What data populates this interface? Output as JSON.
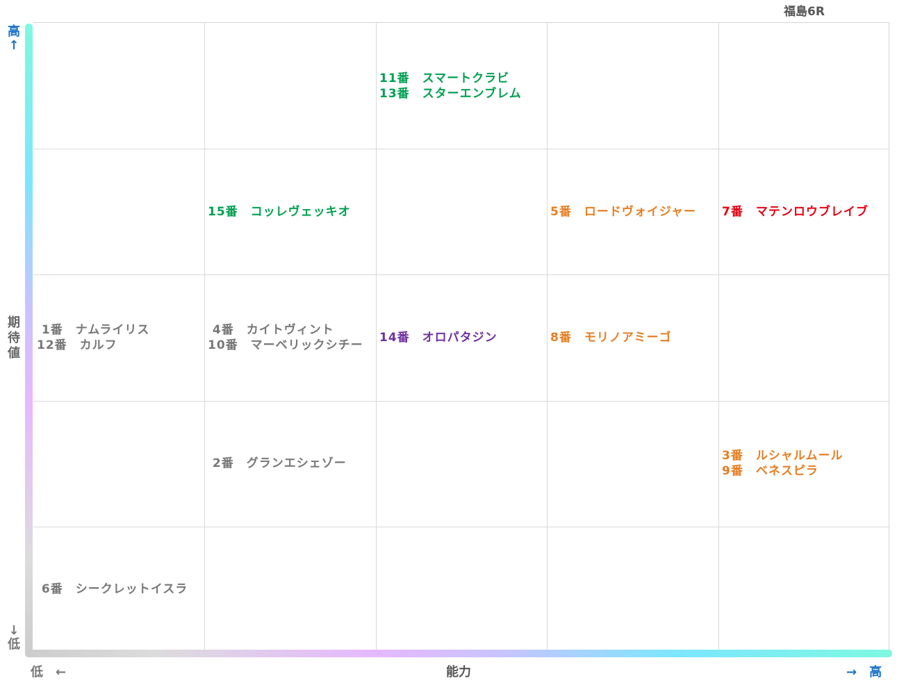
{
  "chart_data": {
    "type": "table",
    "title": "福島6R",
    "xlabel": "能力",
    "ylabel": "期待値",
    "x_low_label": "低　←",
    "x_high_label": "→　高",
    "y_high_label": "高",
    "y_high_arrow": "↑",
    "y_low_label": "低",
    "y_low_arrow": "↓",
    "ylabel_chars": [
      "期",
      "待",
      "値"
    ],
    "grid": {
      "columns": 5,
      "rows": 5
    },
    "colors": {
      "green": "#00a050",
      "orange": "#e67e22",
      "red": "#e60012",
      "purple": "#7030a0",
      "gray": "#777777"
    },
    "cells": [
      {
        "col": 3,
        "row": 1,
        "color": "#00a050",
        "lines": [
          "11番　スマートクラビ",
          "13番　スターエンブレム"
        ]
      },
      {
        "col": 2,
        "row": 2,
        "color": "#00a050",
        "lines": [
          "15番　コッレヴェッキオ"
        ]
      },
      {
        "col": 4,
        "row": 2,
        "color": "#e67e22",
        "lines": [
          "5番　ロードヴォイジャー"
        ]
      },
      {
        "col": 5,
        "row": 2,
        "color": "#e60012",
        "lines": [
          "7番　マテンロウブレイブ"
        ]
      },
      {
        "col": 1,
        "row": 3,
        "color": "#777777",
        "lines": [
          " 1番　ナムライリス",
          "12番　カルフ"
        ]
      },
      {
        "col": 2,
        "row": 3,
        "color": "#777777",
        "lines": [
          " 4番　カイトヴィント",
          "10番　マーベリックシチー"
        ]
      },
      {
        "col": 3,
        "row": 3,
        "color": "#7030a0",
        "lines": [
          "14番　オロパタジン"
        ]
      },
      {
        "col": 4,
        "row": 3,
        "color": "#e67e22",
        "lines": [
          "8番　モリノアミーゴ"
        ]
      },
      {
        "col": 2,
        "row": 4,
        "color": "#777777",
        "lines": [
          " 2番　グランエシェゾー"
        ]
      },
      {
        "col": 5,
        "row": 4,
        "color": "#e67e22",
        "lines": [
          "3番　ルシャルムール",
          "9番　ベネスピラ"
        ]
      },
      {
        "col": 1,
        "row": 5,
        "color": "#777777",
        "lines": [
          " 6番　シークレットイスラ"
        ]
      }
    ]
  }
}
